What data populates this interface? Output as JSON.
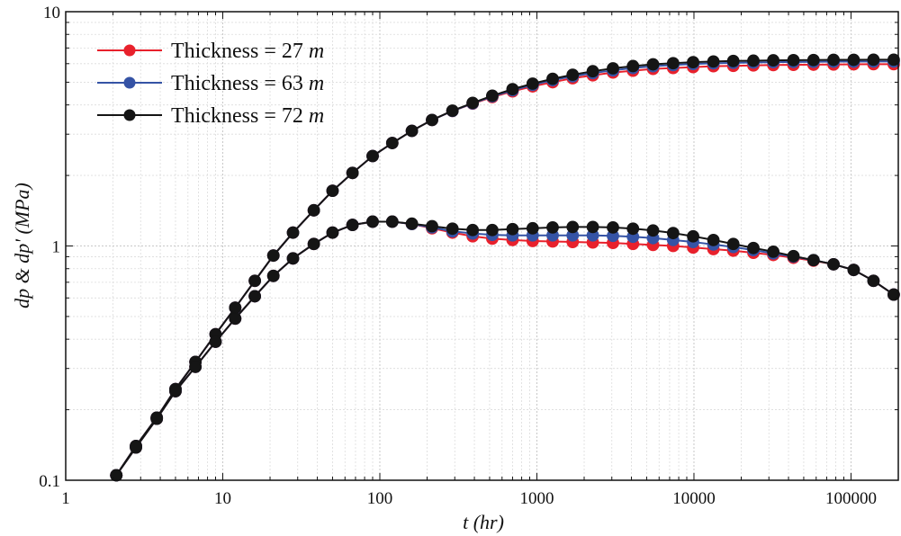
{
  "chart_data": {
    "type": "line",
    "title": "",
    "xlabel": "t (hr)",
    "ylabel": "dp & dp' (MPa)",
    "xscale": "log",
    "yscale": "log",
    "xlim": [
      1,
      200000
    ],
    "ylim": [
      0.1,
      10
    ],
    "grid": true,
    "legend_position": "top-left",
    "x_ticks": [
      {
        "value": 1,
        "label": "1"
      },
      {
        "value": 10,
        "label": "10"
      },
      {
        "value": 100,
        "label": "100"
      },
      {
        "value": 1000,
        "label": "1000"
      },
      {
        "value": 10000,
        "label": "10000"
      },
      {
        "value": 100000,
        "label": "100000"
      }
    ],
    "y_ticks": [
      {
        "value": 0.1,
        "label": "0.1"
      },
      {
        "value": 1,
        "label": "1"
      },
      {
        "value": 10,
        "label": "10"
      }
    ],
    "x": [
      2.1,
      2.8,
      3.8,
      5.0,
      6.7,
      9.0,
      12,
      16,
      21,
      28,
      38,
      50,
      67,
      90,
      120,
      160,
      215,
      290,
      390,
      520,
      700,
      940,
      1260,
      1690,
      2270,
      3050,
      4090,
      5490,
      7370,
      9880,
      13300,
      17800,
      23900,
      32000,
      43000,
      57700,
      77400,
      104000,
      139000,
      187000
    ],
    "series": [
      {
        "name": "Thickness = 27 m",
        "legend_prefix": "Thickness = 27",
        "legend_unit": "m",
        "color": "#e8212c",
        "pressure": [
          0.105,
          0.14,
          0.185,
          0.245,
          0.32,
          0.42,
          0.545,
          0.71,
          0.91,
          1.14,
          1.42,
          1.72,
          2.05,
          2.42,
          2.75,
          3.1,
          3.45,
          3.77,
          4.05,
          4.32,
          4.57,
          4.8,
          5.0,
          5.2,
          5.35,
          5.5,
          5.6,
          5.7,
          5.75,
          5.8,
          5.85,
          5.87,
          5.9,
          5.92,
          5.93,
          5.94,
          5.95,
          5.96,
          5.97,
          5.97
        ],
        "derivative": [
          0.105,
          0.138,
          0.183,
          0.24,
          0.305,
          0.39,
          0.49,
          0.61,
          0.745,
          0.885,
          1.02,
          1.14,
          1.23,
          1.27,
          1.27,
          1.24,
          1.19,
          1.14,
          1.1,
          1.075,
          1.06,
          1.05,
          1.045,
          1.04,
          1.035,
          1.03,
          1.02,
          1.01,
          1.0,
          0.985,
          0.97,
          0.955,
          0.935,
          0.915,
          0.89,
          0.865,
          0.835,
          0.79,
          0.71,
          0.62
        ]
      },
      {
        "name": "Thickness = 63 m",
        "legend_prefix": "Thickness = 63",
        "legend_unit": "m",
        "color": "#3553a5",
        "pressure": [
          0.105,
          0.14,
          0.185,
          0.245,
          0.32,
          0.42,
          0.545,
          0.71,
          0.91,
          1.14,
          1.42,
          1.72,
          2.05,
          2.42,
          2.75,
          3.1,
          3.45,
          3.77,
          4.06,
          4.35,
          4.62,
          4.87,
          5.1,
          5.3,
          5.47,
          5.62,
          5.75,
          5.85,
          5.92,
          5.98,
          6.02,
          6.05,
          6.07,
          6.09,
          6.1,
          6.11,
          6.12,
          6.12,
          6.13,
          6.13
        ],
        "derivative": [
          0.105,
          0.138,
          0.183,
          0.24,
          0.305,
          0.39,
          0.49,
          0.61,
          0.745,
          0.885,
          1.02,
          1.14,
          1.23,
          1.27,
          1.27,
          1.24,
          1.2,
          1.155,
          1.13,
          1.115,
          1.11,
          1.11,
          1.11,
          1.11,
          1.11,
          1.105,
          1.095,
          1.08,
          1.06,
          1.04,
          1.015,
          0.99,
          0.96,
          0.93,
          0.9,
          0.87,
          0.835,
          0.79,
          0.71,
          0.62
        ]
      },
      {
        "name": "Thickness = 72 m",
        "legend_prefix": "Thickness = 72",
        "legend_unit": "m",
        "color": "#151515",
        "pressure": [
          0.105,
          0.14,
          0.185,
          0.245,
          0.32,
          0.42,
          0.545,
          0.71,
          0.91,
          1.14,
          1.42,
          1.72,
          2.05,
          2.42,
          2.75,
          3.1,
          3.45,
          3.78,
          4.08,
          4.38,
          4.67,
          4.93,
          5.17,
          5.38,
          5.57,
          5.73,
          5.86,
          5.96,
          6.03,
          6.09,
          6.13,
          6.16,
          6.18,
          6.2,
          6.21,
          6.22,
          6.23,
          6.23,
          6.24,
          6.24
        ],
        "derivative": [
          0.105,
          0.138,
          0.183,
          0.24,
          0.305,
          0.39,
          0.49,
          0.61,
          0.745,
          0.885,
          1.02,
          1.14,
          1.23,
          1.27,
          1.27,
          1.245,
          1.215,
          1.185,
          1.17,
          1.17,
          1.18,
          1.19,
          1.2,
          1.205,
          1.205,
          1.2,
          1.185,
          1.165,
          1.135,
          1.1,
          1.06,
          1.02,
          0.98,
          0.945,
          0.905,
          0.87,
          0.835,
          0.79,
          0.71,
          0.62
        ]
      }
    ]
  }
}
